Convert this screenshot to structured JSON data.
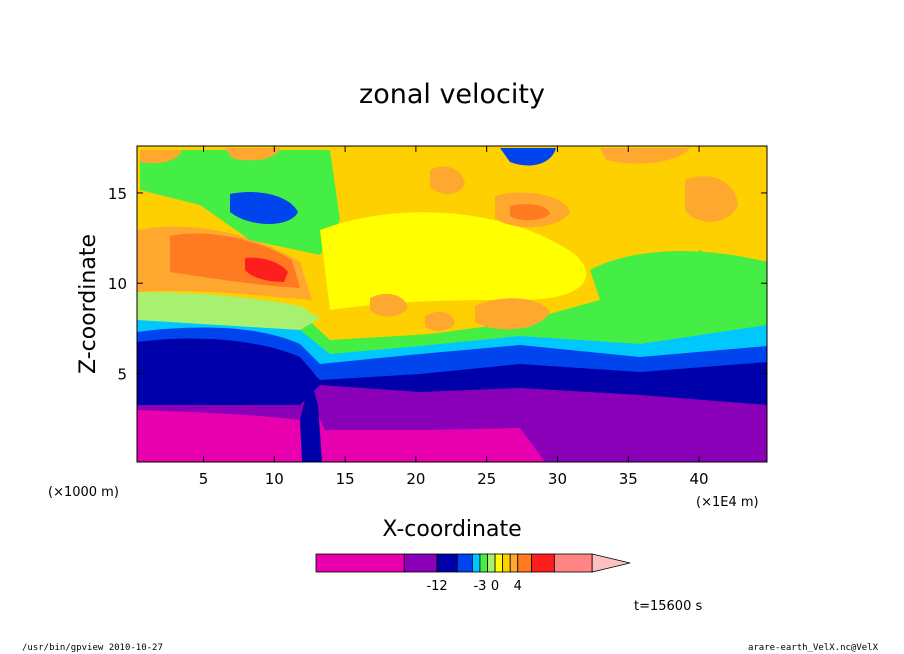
{
  "chart_data": {
    "type": "heatmap",
    "title": "zonal velocity",
    "xlabel": "X-coordinate",
    "ylabel": "Z-coordinate",
    "x_unit_left": "(×1000 m)",
    "x_unit_right": "(×1E4 m)",
    "x_ticks": [
      5,
      10,
      15,
      20,
      25,
      30,
      35,
      40
    ],
    "x_tick_labels": [
      "5",
      "10",
      "15",
      "20",
      "25",
      "30",
      "35",
      "40"
    ],
    "y_ticks": [
      5,
      10,
      15
    ],
    "y_tick_labels": [
      "5",
      "10",
      "15"
    ],
    "xlim": [
      0.3,
      44.8
    ],
    "ylim": [
      0.1,
      17.6
    ],
    "colorbar": {
      "colors": [
        "#e800ae",
        "#8a00b8",
        "#0000aa",
        "#0044ee",
        "#00c8ff",
        "#44ee44",
        "#a8f070",
        "#ffff00",
        "#ffd000",
        "#ffa830",
        "#ff7a20",
        "#ff1e1e",
        "#ff8484",
        "#ffc0c0"
      ],
      "tick_labels": [
        "-12",
        "-3",
        "0",
        "4"
      ],
      "tick_index": [
        2,
        5,
        7,
        10
      ]
    },
    "annotation": "t=15600 s"
  },
  "footer": {
    "left": "/usr/bin/gpview   2010-10-27",
    "right": "arare-earth_VelX.nc@VelX"
  }
}
